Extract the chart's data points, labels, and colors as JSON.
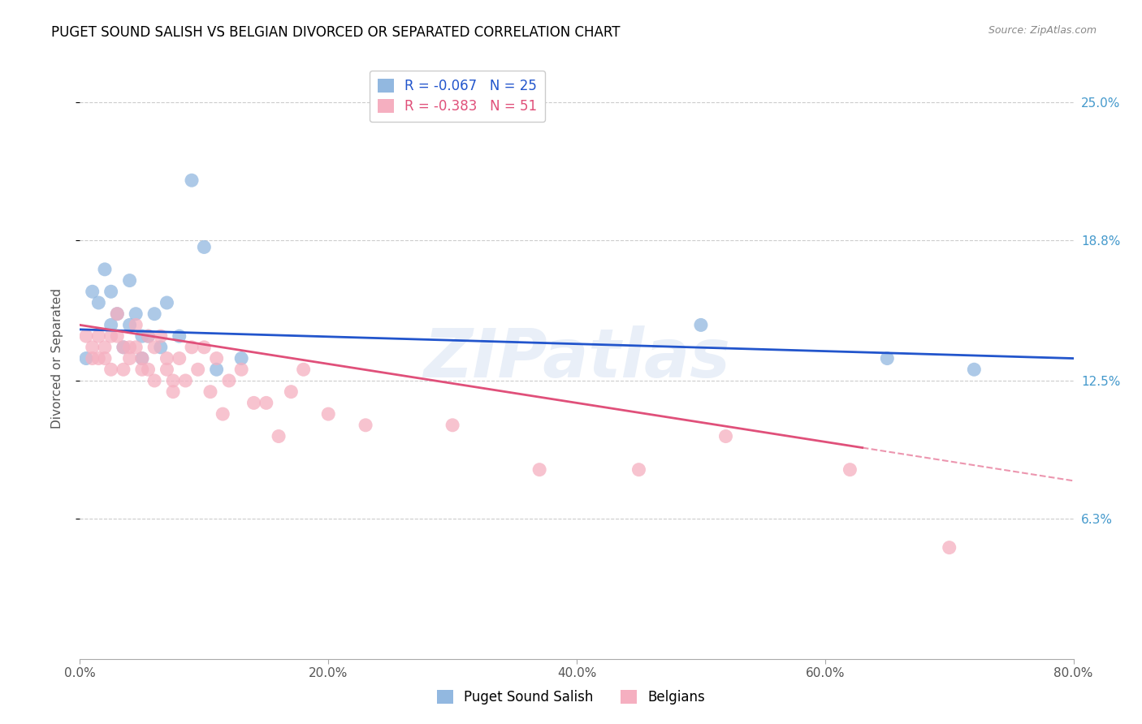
{
  "title": "PUGET SOUND SALISH VS BELGIAN DIVORCED OR SEPARATED CORRELATION CHART",
  "source": "Source: ZipAtlas.com",
  "ylabel": "Divorced or Separated",
  "x_min": 0.0,
  "x_max": 80.0,
  "y_min": 0.0,
  "y_max": 27.0,
  "y_ticks": [
    6.3,
    12.5,
    18.8,
    25.0
  ],
  "x_ticks": [
    0.0,
    20.0,
    40.0,
    60.0,
    80.0
  ],
  "blue_label": "Puget Sound Salish",
  "pink_label": "Belgians",
  "blue_R": -0.067,
  "blue_N": 25,
  "pink_R": -0.383,
  "pink_N": 51,
  "blue_color": "#92b8e0",
  "pink_color": "#f5afc0",
  "blue_line_color": "#2255cc",
  "pink_line_color": "#e0507a",
  "watermark": "ZIPatlas",
  "blue_points_x": [
    0.5,
    1.0,
    1.5,
    2.0,
    2.5,
    2.5,
    3.0,
    3.5,
    4.0,
    4.0,
    4.5,
    5.0,
    5.0,
    5.5,
    6.0,
    6.5,
    7.0,
    8.0,
    9.0,
    10.0,
    11.0,
    13.0,
    50.0,
    65.0,
    72.0
  ],
  "blue_points_y": [
    13.5,
    16.5,
    16.0,
    17.5,
    16.5,
    15.0,
    15.5,
    14.0,
    17.0,
    15.0,
    15.5,
    14.5,
    13.5,
    14.5,
    15.5,
    14.0,
    16.0,
    14.5,
    21.5,
    18.5,
    13.0,
    13.5,
    15.0,
    13.5,
    13.0
  ],
  "pink_points_x": [
    0.5,
    1.0,
    1.0,
    1.5,
    1.5,
    2.0,
    2.0,
    2.5,
    2.5,
    3.0,
    3.0,
    3.5,
    3.5,
    4.0,
    4.0,
    4.5,
    4.5,
    5.0,
    5.0,
    5.5,
    5.5,
    6.0,
    6.0,
    6.5,
    7.0,
    7.0,
    7.5,
    7.5,
    8.0,
    8.5,
    9.0,
    9.5,
    10.0,
    10.5,
    11.0,
    11.5,
    12.0,
    13.0,
    14.0,
    15.0,
    16.0,
    17.0,
    18.0,
    20.0,
    23.0,
    30.0,
    37.0,
    45.0,
    52.0,
    62.0,
    70.0
  ],
  "pink_points_y": [
    14.5,
    13.5,
    14.0,
    14.5,
    13.5,
    14.0,
    13.5,
    14.5,
    13.0,
    15.5,
    14.5,
    14.0,
    13.0,
    14.0,
    13.5,
    15.0,
    14.0,
    13.5,
    13.0,
    14.5,
    13.0,
    14.0,
    12.5,
    14.5,
    13.5,
    13.0,
    12.5,
    12.0,
    13.5,
    12.5,
    14.0,
    13.0,
    14.0,
    12.0,
    13.5,
    11.0,
    12.5,
    13.0,
    11.5,
    11.5,
    10.0,
    12.0,
    13.0,
    11.0,
    10.5,
    10.5,
    8.5,
    8.5,
    10.0,
    8.5,
    5.0
  ],
  "blue_trend_x0": 0.0,
  "blue_trend_y0": 14.8,
  "blue_trend_x1": 80.0,
  "blue_trend_y1": 13.5,
  "pink_trend_x0": 0.0,
  "pink_trend_y0": 15.0,
  "pink_trend_x1": 80.0,
  "pink_trend_y1": 8.0,
  "pink_solid_end": 63.0
}
